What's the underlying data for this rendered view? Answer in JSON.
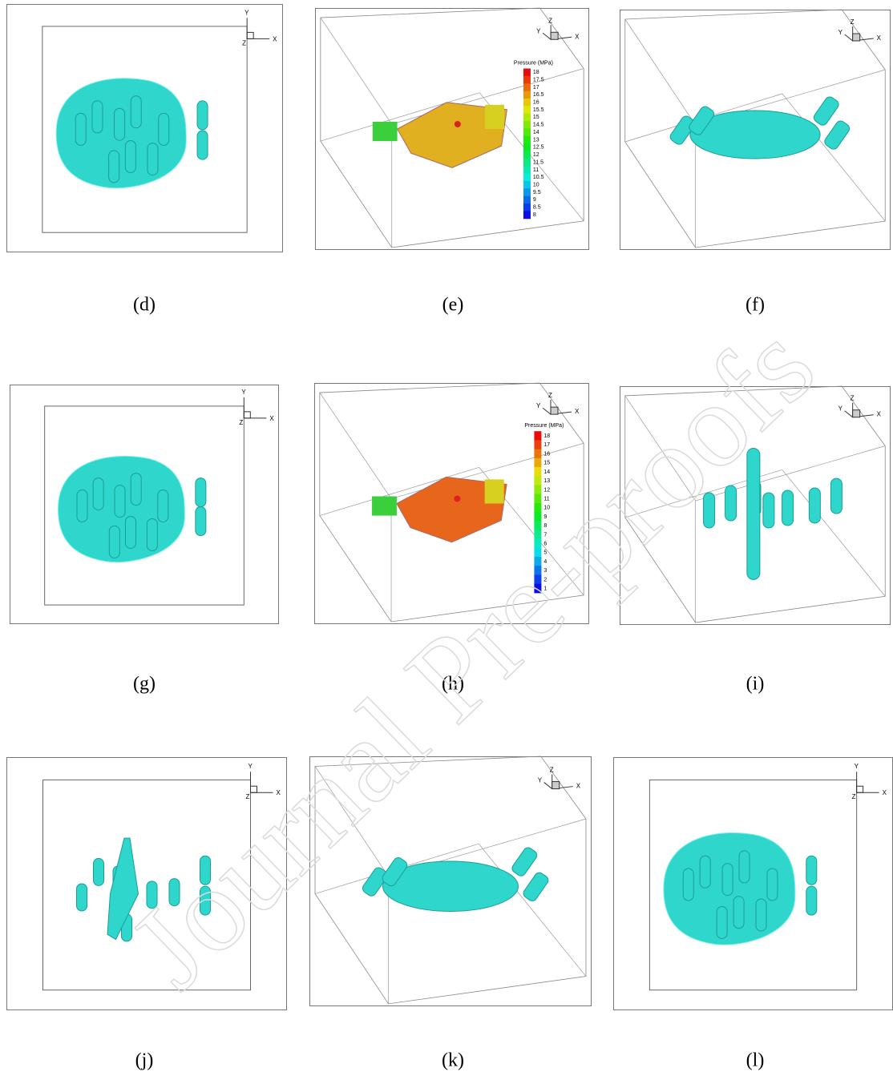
{
  "watermark": "Journal Pre-proofs",
  "panels": [
    {
      "label": "(d)",
      "axes": {
        "x": "X",
        "y": "Y",
        "z": "Z"
      }
    },
    {
      "label": "(e)",
      "axes": {
        "x": "X",
        "y": "Y",
        "z": "Z"
      },
      "colorbar": {
        "title": "Pressure (MPa)",
        "ticks": [
          "18",
          "17.5",
          "17",
          "16.5",
          "16",
          "15.5",
          "15",
          "14.5",
          "14",
          "13",
          "12.5",
          "12",
          "11.5",
          "11",
          "10.5",
          "10",
          "9.5",
          "9",
          "8.5",
          "8"
        ]
      }
    },
    {
      "label": "(f)",
      "axes": {
        "x": "X",
        "y": "Y",
        "z": "Z"
      }
    },
    {
      "label": "(g)",
      "axes": {
        "x": "X",
        "y": "Y",
        "z": "Z"
      }
    },
    {
      "label": "(h)",
      "axes": {
        "x": "X",
        "y": "Y",
        "z": "Z"
      },
      "colorbar": {
        "title": "Pressure (MPa)",
        "ticks": [
          "18",
          "17",
          "16",
          "15",
          "14",
          "13",
          "12",
          "11",
          "10",
          "9",
          "8",
          "7",
          "6",
          "5",
          "4",
          "3",
          "2",
          "1"
        ]
      }
    },
    {
      "label": "(i)",
      "axes": {
        "x": "X",
        "y": "Y",
        "z": "Z"
      }
    },
    {
      "label": "(j)",
      "axes": {
        "x": "X",
        "y": "Y",
        "z": "Z"
      }
    },
    {
      "label": "(k)",
      "axes": {
        "x": "X",
        "y": "Y",
        "z": "Z"
      }
    },
    {
      "label": "(l)",
      "axes": {
        "x": "X",
        "y": "Y",
        "z": "Z"
      }
    }
  ]
}
